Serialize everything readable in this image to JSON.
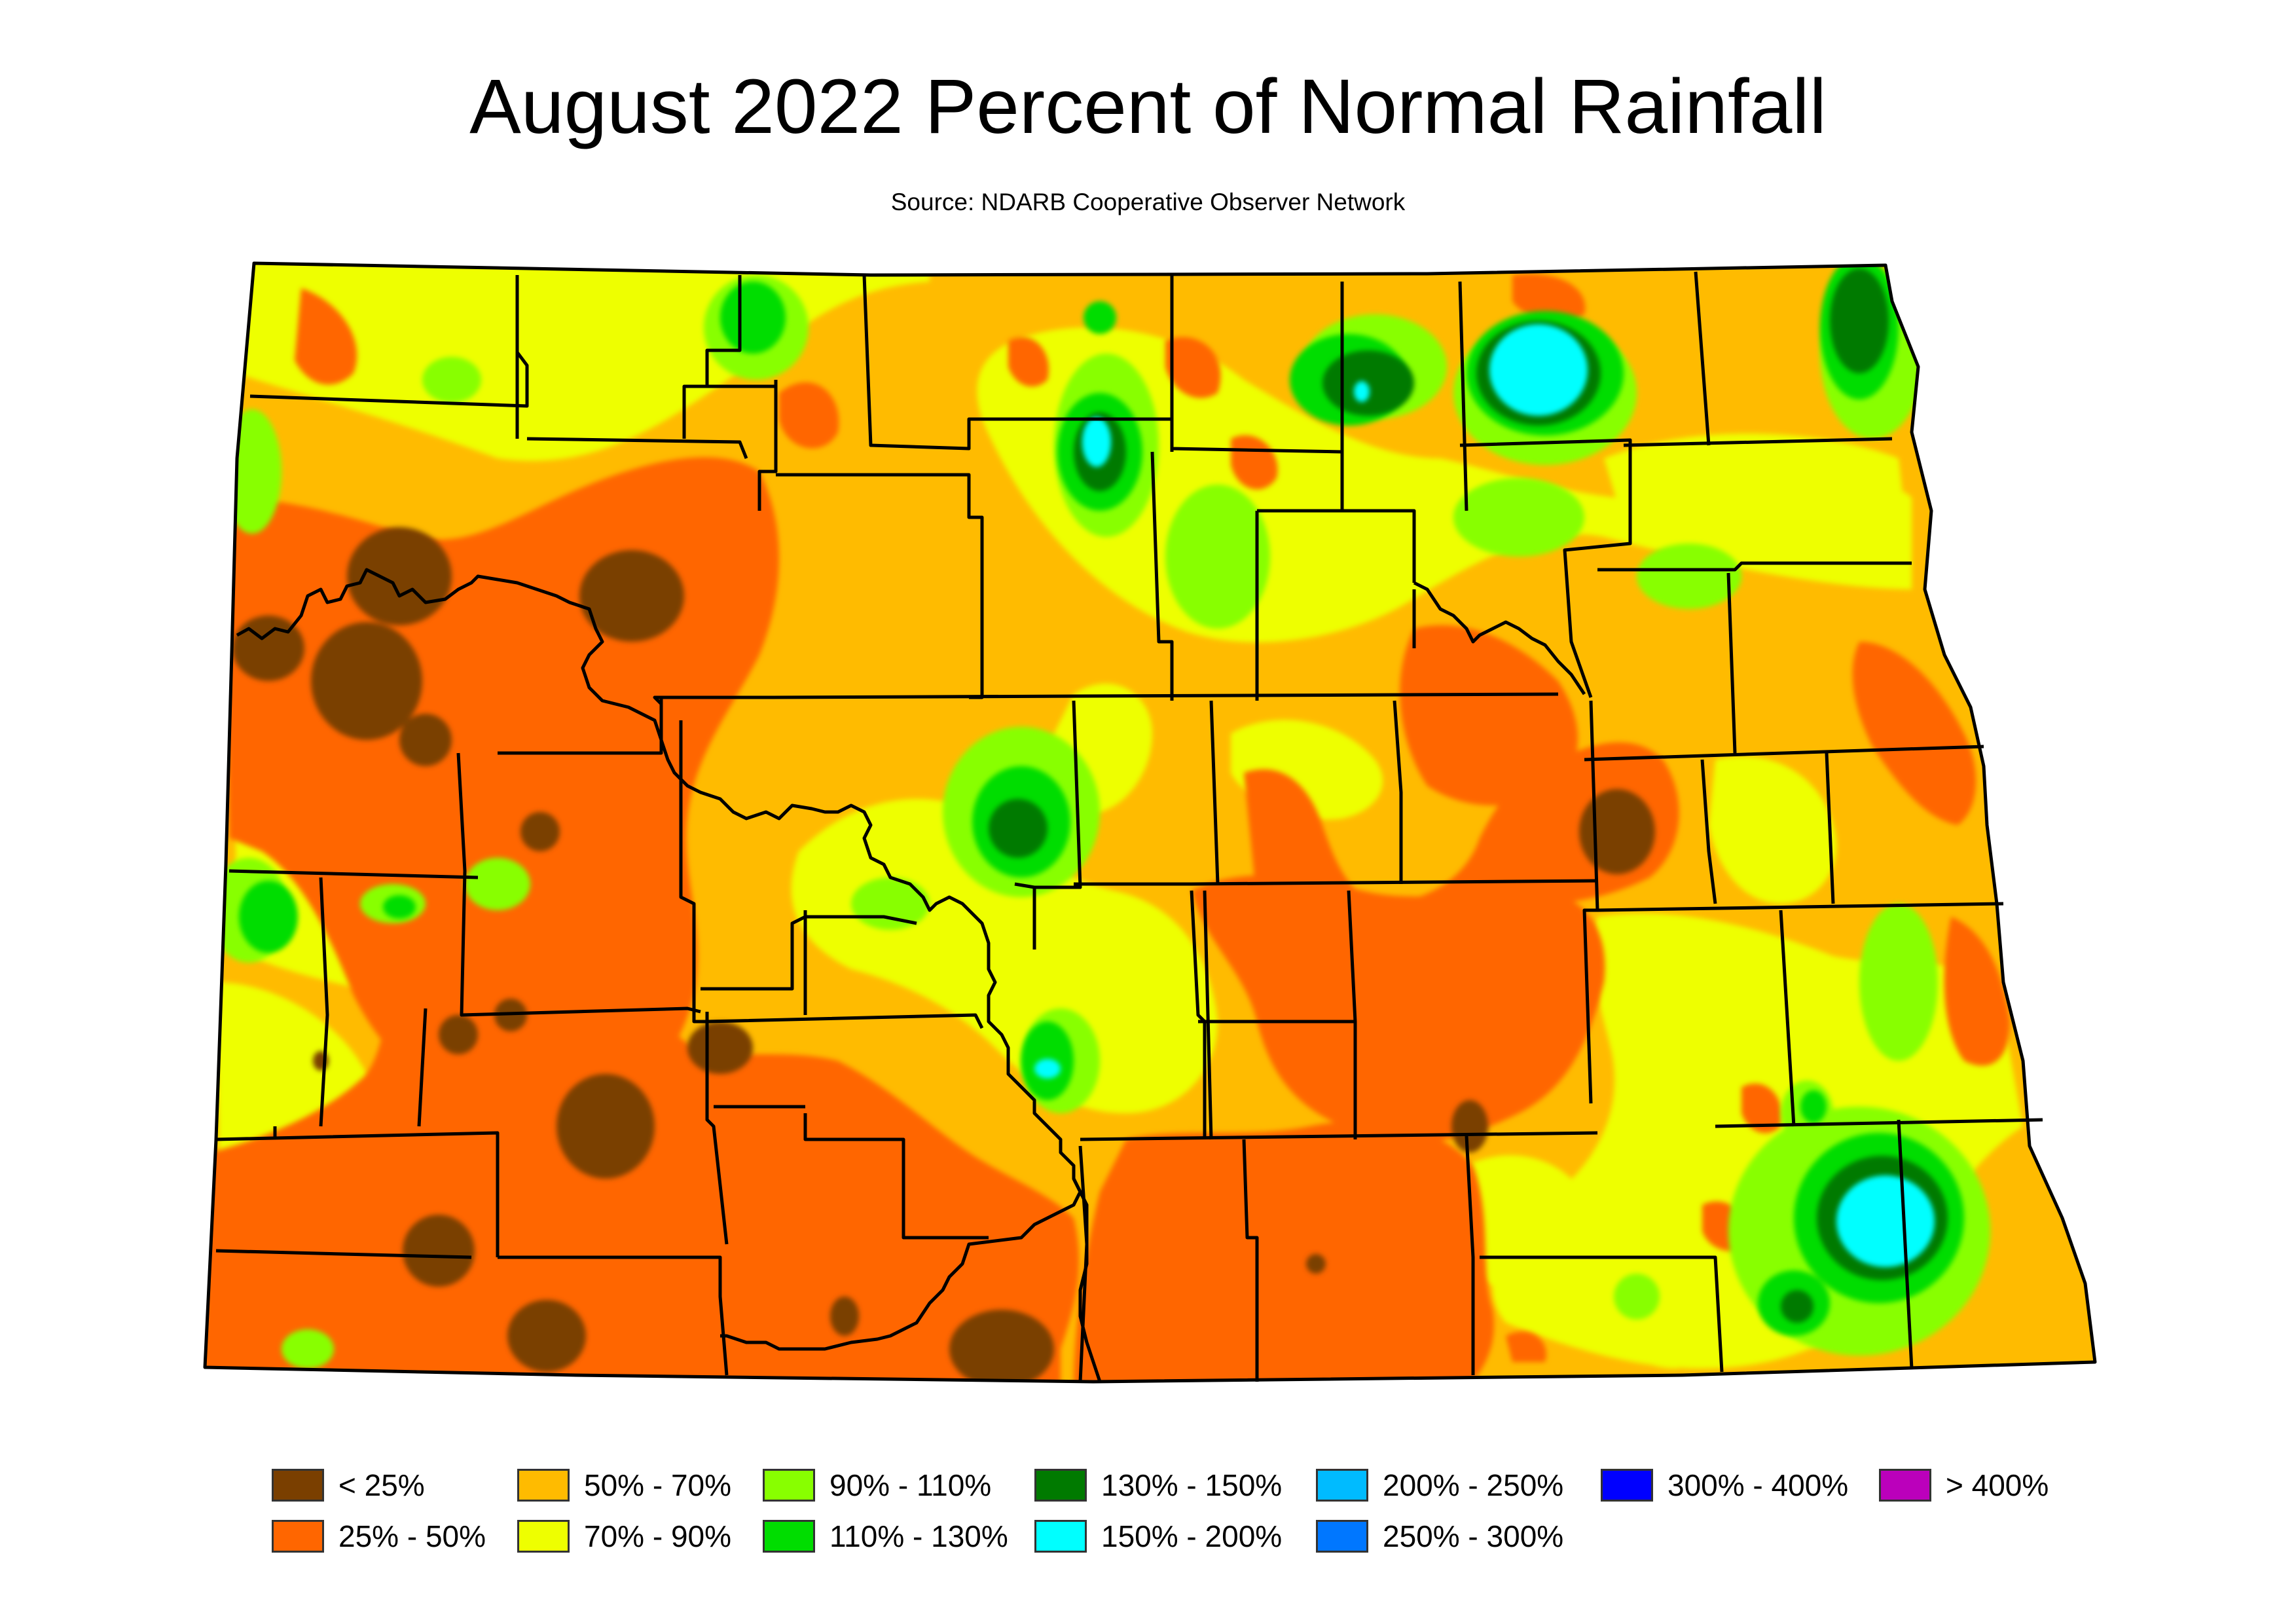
{
  "title": "August 2022 Percent of Normal Rainfall",
  "subtitle": "Source: NDARB Cooperative Observer Network",
  "colors": {
    "lt25": "#7a3f00",
    "c25_50": "#ff6600",
    "c50_70": "#ffbb00",
    "c70_90": "#eeff00",
    "c90_110": "#88ff00",
    "c110_130": "#00dd00",
    "c130_150": "#007a00",
    "c150_200": "#00ffff",
    "c200_250": "#00bbff",
    "c250_300": "#0077ff",
    "c300_400": "#0000ff",
    "gt400": "#bb00bb"
  },
  "legend": [
    {
      "label": "< 25%",
      "color": "#7a3f00"
    },
    {
      "label": "25% - 50%",
      "color": "#ff6600"
    },
    {
      "label": "50% - 70%",
      "color": "#ffbb00"
    },
    {
      "label": "70% - 90%",
      "color": "#eeff00"
    },
    {
      "label": "90% - 110%",
      "color": "#88ff00"
    },
    {
      "label": "110% - 130%",
      "color": "#00dd00"
    },
    {
      "label": "130% - 150%",
      "color": "#007a00"
    },
    {
      "label": "150% - 200%",
      "color": "#00ffff"
    },
    {
      "label": "200% - 250%",
      "color": "#00bbff"
    },
    {
      "label": "250% - 300%",
      "color": "#0077ff"
    },
    {
      "label": "300% - 400%",
      "color": "#0000ff"
    },
    {
      "label": "> 400%",
      "color": "#bb00bb"
    }
  ]
}
